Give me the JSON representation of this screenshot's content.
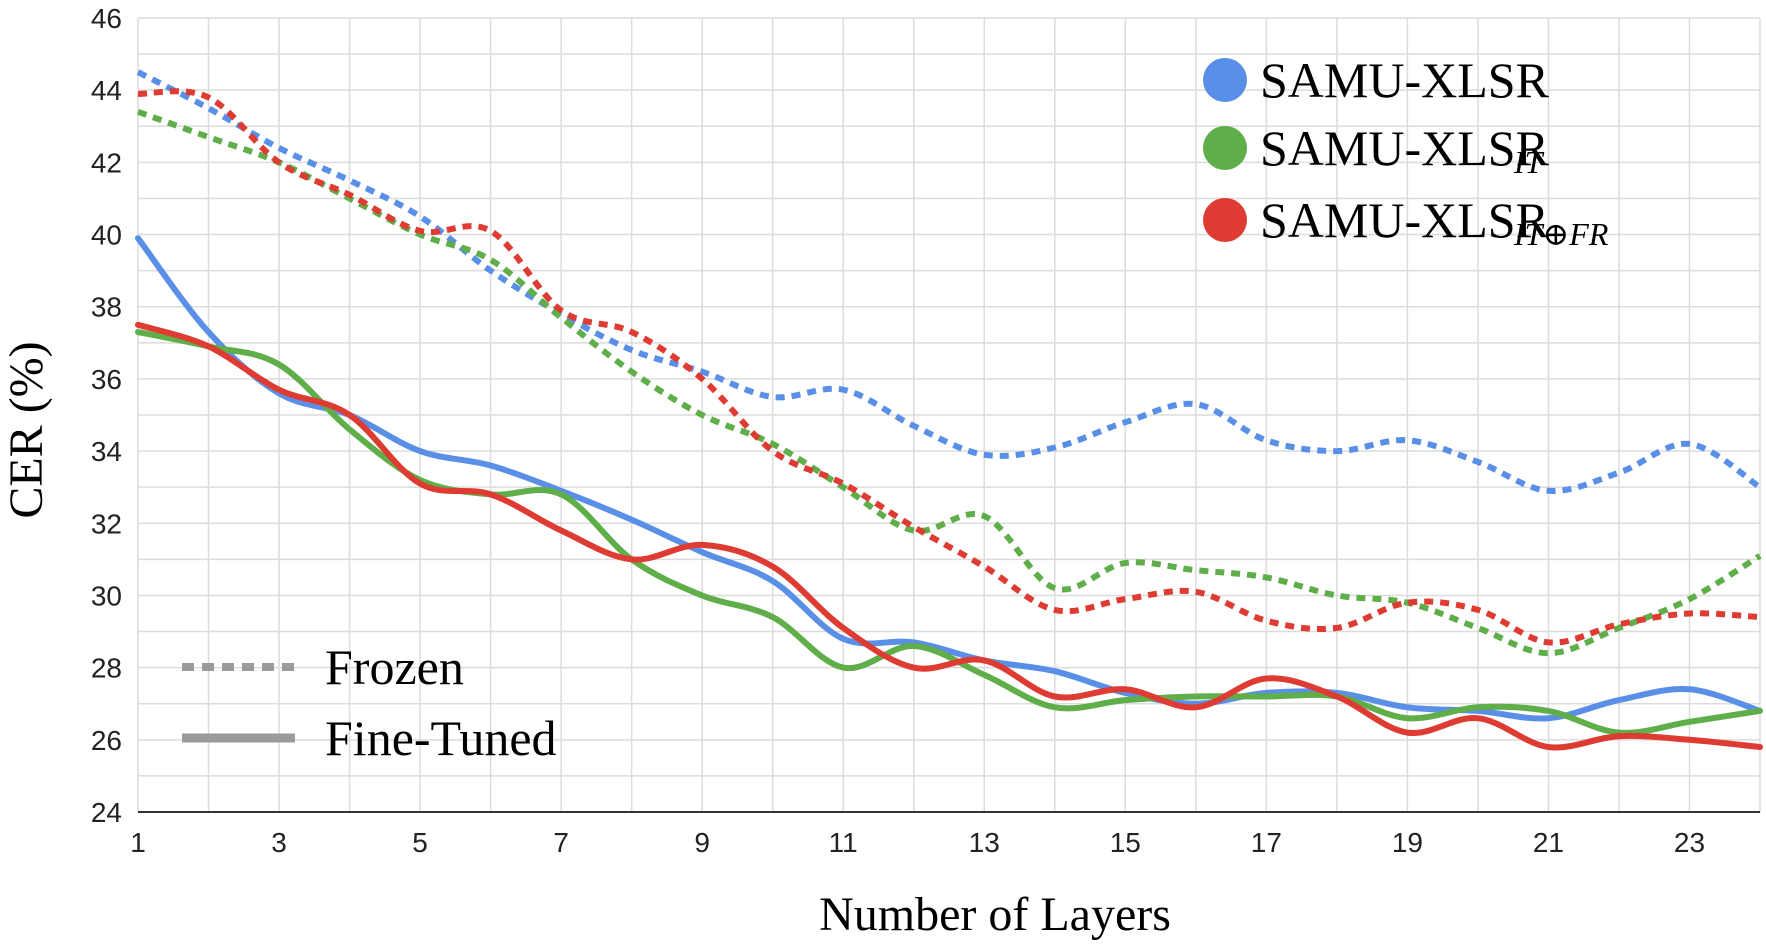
{
  "chart_data": {
    "type": "line",
    "title": "",
    "xlabel": "Number of Layers",
    "ylabel": "CER (%)",
    "xlim": [
      1,
      24
    ],
    "ylim": [
      24,
      46
    ],
    "x_ticks": [
      1,
      3,
      5,
      7,
      9,
      11,
      13,
      15,
      17,
      19,
      21,
      23
    ],
    "y_ticks": [
      24,
      26,
      28,
      30,
      32,
      34,
      36,
      38,
      40,
      42,
      44,
      46
    ],
    "x": [
      1,
      2,
      3,
      4,
      5,
      6,
      7,
      8,
      9,
      10,
      11,
      12,
      13,
      14,
      15,
      16,
      17,
      18,
      19,
      20,
      21,
      22,
      23,
      24
    ],
    "colors": {
      "samu_xlsr": "#5a8fe8",
      "samu_xlsr_it": "#5fae4a",
      "samu_xlsr_it_fr": "#de3c32",
      "style_key": "#9a9a9a"
    },
    "legend": {
      "models": [
        {
          "key": "samu_xlsr",
          "label": "SAMU-XLSR",
          "subscript": ""
        },
        {
          "key": "samu_xlsr_it",
          "label": "SAMU-XLSR",
          "subscript": "IT"
        },
        {
          "key": "samu_xlsr_it_fr",
          "label": "SAMU-XLSR",
          "subscript": "IT⊕FR"
        }
      ],
      "styles": [
        {
          "key": "frozen",
          "label": "Frozen",
          "dash": true
        },
        {
          "key": "finetuned",
          "label": "Fine-Tuned",
          "dash": false
        }
      ]
    },
    "series": [
      {
        "name": "SAMU-XLSR (Frozen)",
        "model": "samu_xlsr",
        "style": "frozen",
        "values": [
          44.5,
          43.5,
          42.4,
          41.5,
          40.5,
          39.0,
          37.8,
          36.8,
          36.2,
          35.5,
          35.7,
          34.7,
          33.9,
          34.1,
          34.8,
          35.3,
          34.3,
          34.0,
          34.3,
          33.7,
          32.9,
          33.4,
          34.2,
          33.0
        ]
      },
      {
        "name": "SAMU-XLSR IT (Frozen)",
        "model": "samu_xlsr_it",
        "style": "frozen",
        "values": [
          43.4,
          42.7,
          42.0,
          41.0,
          40.0,
          39.3,
          37.7,
          36.2,
          35.0,
          34.2,
          33.0,
          31.8,
          32.2,
          30.2,
          30.9,
          30.7,
          30.5,
          30.0,
          29.8,
          29.1,
          28.4,
          29.1,
          29.9,
          31.1
        ]
      },
      {
        "name": "SAMU-XLSR IT⊕FR (Frozen)",
        "model": "samu_xlsr_it_fr",
        "style": "frozen",
        "values": [
          43.9,
          43.8,
          42.0,
          41.1,
          40.1,
          40.1,
          37.9,
          37.3,
          36.0,
          34.0,
          33.1,
          31.9,
          30.8,
          29.6,
          29.9,
          30.1,
          29.3,
          29.1,
          29.8,
          29.6,
          28.7,
          29.2,
          29.5,
          29.4
        ]
      },
      {
        "name": "SAMU-XLSR (Fine-Tuned)",
        "model": "samu_xlsr",
        "style": "finetuned",
        "values": [
          39.9,
          37.3,
          35.6,
          35.0,
          34.0,
          33.6,
          32.9,
          32.1,
          31.2,
          30.4,
          28.8,
          28.7,
          28.2,
          27.9,
          27.3,
          27.0,
          27.3,
          27.3,
          26.9,
          26.8,
          26.6,
          27.1,
          27.4,
          26.8
        ]
      },
      {
        "name": "SAMU-XLSR IT (Fine-Tuned)",
        "model": "samu_xlsr_it",
        "style": "finetuned",
        "values": [
          37.3,
          36.9,
          36.4,
          34.6,
          33.2,
          32.8,
          32.8,
          31.0,
          30.0,
          29.4,
          28.0,
          28.6,
          27.8,
          26.9,
          27.1,
          27.2,
          27.2,
          27.2,
          26.6,
          26.9,
          26.8,
          26.2,
          26.5,
          26.8
        ]
      },
      {
        "name": "SAMU-XLSR IT⊕FR (Fine-Tuned)",
        "model": "samu_xlsr_it_fr",
        "style": "finetuned",
        "values": [
          37.5,
          36.9,
          35.7,
          35.0,
          33.1,
          32.8,
          31.8,
          31.0,
          31.4,
          30.8,
          29.1,
          28.0,
          28.2,
          27.2,
          27.4,
          26.9,
          27.7,
          27.2,
          26.2,
          26.6,
          25.8,
          26.1,
          26.0,
          25.8
        ]
      }
    ]
  }
}
